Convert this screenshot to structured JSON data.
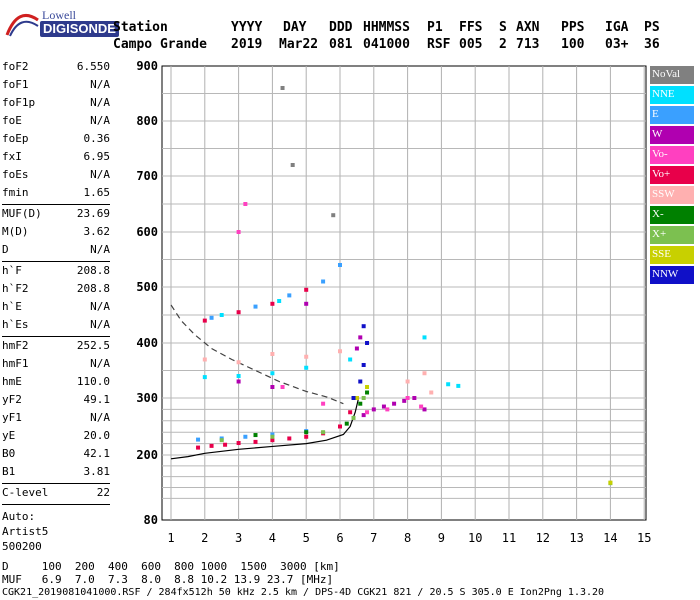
{
  "logo": {
    "line1": "Lowell",
    "line2": "DIGISONDE"
  },
  "header": {
    "labels": [
      "Station",
      "YYYY",
      "DAY",
      "DDD",
      "HHMMSS",
      "P1",
      "FFS",
      "S",
      "AXN",
      "PPS",
      "IGA",
      "PS"
    ],
    "values": [
      "Campo Grande",
      "2019",
      "Mar22",
      "081",
      "041000",
      "RSF",
      "005",
      "2",
      "713",
      "100",
      "03+",
      "36"
    ]
  },
  "params_group1": [
    {
      "name": "foF2",
      "value": "6.550"
    },
    {
      "name": "foF1",
      "value": "N/A"
    },
    {
      "name": "foF1p",
      "value": "N/A"
    },
    {
      "name": "foE",
      "value": "N/A"
    },
    {
      "name": "foEp",
      "value": "0.36"
    },
    {
      "name": "fxI",
      "value": "6.95"
    },
    {
      "name": "foEs",
      "value": "N/A"
    },
    {
      "name": "fmin",
      "value": "1.65"
    }
  ],
  "params_group2": [
    {
      "name": "MUF(D)",
      "value": "23.69"
    },
    {
      "name": "M(D)",
      "value": "3.62"
    },
    {
      "name": "D",
      "value": "N/A"
    }
  ],
  "params_group3": [
    {
      "name": "h`F",
      "value": "208.8"
    },
    {
      "name": "h`F2",
      "value": "208.8"
    },
    {
      "name": "h`E",
      "value": "N/A"
    },
    {
      "name": "h`Es",
      "value": "N/A"
    }
  ],
  "params_group4": [
    {
      "name": "hmF2",
      "value": "252.5"
    },
    {
      "name": "hmF1",
      "value": "N/A"
    },
    {
      "name": "hmE",
      "value": "110.0"
    },
    {
      "name": "yF2",
      "value": "49.1"
    },
    {
      "name": "yF1",
      "value": "N/A"
    },
    {
      "name": "yE",
      "value": "20.0"
    },
    {
      "name": "B0",
      "value": "42.1"
    },
    {
      "name": "B1",
      "value": "3.81"
    }
  ],
  "params_group5": [
    {
      "name": "C-level",
      "value": "22"
    }
  ],
  "autoscale": [
    "Auto:",
    "Artist5",
    "500200"
  ],
  "legend": [
    {
      "label": "NoVal",
      "color": "#808080"
    },
    {
      "label": "NNE",
      "color": "#00e0ff"
    },
    {
      "label": "E",
      "color": "#3aa0ff"
    },
    {
      "label": "W",
      "color": "#b000b0"
    },
    {
      "label": "Vo-",
      "color": "#ff40c0"
    },
    {
      "label": "Vo+",
      "color": "#e8004a"
    },
    {
      "label": "SSW",
      "color": "#ffb0b0"
    },
    {
      "label": "X-",
      "color": "#008000"
    },
    {
      "label": "X+",
      "color": "#7cc050"
    },
    {
      "label": "SSE",
      "color": "#c8d000"
    },
    {
      "label": "NNW",
      "color": "#1010c8"
    }
  ],
  "footer": {
    "d_line": "D     100  200  400  600  800 1000  1500  3000 [km]",
    "muf_line": "MUF   6.9  7.0  7.3  8.0  8.8 10.2 13.9 23.7 [MHz]",
    "info_line": "CGK21_2019081041000.RSF / 284fx512h 50 kHz 2.5 km / DPS-4D CGK21 821 / 20.5 S 305.0 E Ion2Png 1.3.20"
  },
  "chart_data": {
    "type": "scatter",
    "xlim": [
      1,
      15
    ],
    "ylim": [
      80,
      900
    ],
    "x_ticks": [
      1,
      2,
      3,
      4,
      5,
      6,
      7,
      8,
      9,
      10,
      11,
      12,
      13,
      14,
      15
    ],
    "y_ticks": [
      80,
      200,
      300,
      400,
      500,
      600,
      700,
      800,
      900
    ],
    "grid": true,
    "legend_position": "right",
    "series": [
      {
        "name": "Vo+",
        "color": "#e8004a",
        "points": [
          [
            1.8,
            213
          ],
          [
            2.2,
            216
          ],
          [
            2.6,
            218
          ],
          [
            3.0,
            221
          ],
          [
            3.5,
            223
          ],
          [
            4.0,
            226
          ],
          [
            4.5,
            229
          ],
          [
            5.0,
            232
          ],
          [
            5.5,
            238
          ],
          [
            6.0,
            250
          ],
          [
            6.3,
            275
          ],
          [
            6.5,
            300
          ],
          [
            2.0,
            440
          ],
          [
            3.0,
            455
          ],
          [
            4.0,
            470
          ],
          [
            5.0,
            495
          ]
        ]
      },
      {
        "name": "E",
        "color": "#3aa0ff",
        "points": [
          [
            1.8,
            227
          ],
          [
            2.5,
            229
          ],
          [
            3.2,
            232
          ],
          [
            4.0,
            236
          ],
          [
            5.0,
            242
          ],
          [
            2.2,
            445
          ],
          [
            3.5,
            465
          ],
          [
            4.5,
            485
          ],
          [
            5.5,
            510
          ],
          [
            6.0,
            540
          ]
        ]
      },
      {
        "name": "NNE",
        "color": "#00e0ff",
        "points": [
          [
            2.0,
            338
          ],
          [
            3.0,
            340
          ],
          [
            4.0,
            345
          ],
          [
            5.0,
            355
          ],
          [
            6.3,
            370
          ],
          [
            8.5,
            410
          ],
          [
            9.2,
            325
          ],
          [
            9.5,
            322
          ],
          [
            2.5,
            450
          ],
          [
            4.2,
            475
          ]
        ]
      },
      {
        "name": "W",
        "color": "#b000b0",
        "points": [
          [
            6.7,
            270
          ],
          [
            7.0,
            280
          ],
          [
            7.3,
            285
          ],
          [
            7.6,
            290
          ],
          [
            7.9,
            295
          ],
          [
            8.2,
            300
          ],
          [
            8.5,
            280
          ],
          [
            6.5,
            390
          ],
          [
            6.6,
            410
          ],
          [
            3.0,
            330
          ],
          [
            4.0,
            320
          ],
          [
            5.0,
            470
          ]
        ]
      },
      {
        "name": "Vo-",
        "color": "#ff40c0",
        "points": [
          [
            6.8,
            275
          ],
          [
            7.4,
            280
          ],
          [
            8.0,
            300
          ],
          [
            8.4,
            285
          ],
          [
            3.0,
            600
          ],
          [
            3.2,
            650
          ],
          [
            5.5,
            290
          ],
          [
            4.3,
            320
          ]
        ]
      },
      {
        "name": "SSW",
        "color": "#ffb0b0",
        "points": [
          [
            2.0,
            370
          ],
          [
            3.0,
            365
          ],
          [
            4.0,
            380
          ],
          [
            5.0,
            375
          ],
          [
            6.0,
            385
          ],
          [
            8.0,
            330
          ],
          [
            8.5,
            345
          ],
          [
            8.7,
            310
          ]
        ]
      },
      {
        "name": "X-",
        "color": "#008000",
        "points": [
          [
            3.5,
            235
          ],
          [
            5.0,
            240
          ],
          [
            6.2,
            255
          ],
          [
            6.6,
            290
          ],
          [
            6.8,
            310
          ]
        ]
      },
      {
        "name": "X+",
        "color": "#7cc050",
        "points": [
          [
            2.5,
            226
          ],
          [
            4.0,
            232
          ],
          [
            5.5,
            240
          ],
          [
            6.4,
            265
          ],
          [
            6.7,
            300
          ],
          [
            14.0,
            148
          ]
        ]
      },
      {
        "name": "SSE",
        "color": "#c8d000",
        "points": [
          [
            6.5,
            300
          ],
          [
            6.8,
            320
          ],
          [
            14.0,
            149
          ]
        ]
      },
      {
        "name": "NNW",
        "color": "#1010c8",
        "points": [
          [
            6.6,
            330
          ],
          [
            6.7,
            360
          ],
          [
            6.8,
            400
          ],
          [
            6.7,
            430
          ],
          [
            6.4,
            300
          ]
        ]
      },
      {
        "name": "NoVal",
        "color": "#808080",
        "points": [
          [
            4.3,
            860
          ],
          [
            4.6,
            720
          ],
          [
            5.8,
            630
          ]
        ]
      }
    ],
    "lines": [
      {
        "name": "profile",
        "style": "solid",
        "x": [
          1.0,
          1.5,
          2.0,
          3.0,
          4.0,
          5.0,
          5.6,
          6.1,
          6.3,
          6.45,
          6.55
        ],
        "y": [
          193,
          197,
          203,
          210,
          215,
          220,
          226,
          236,
          250,
          275,
          300
        ]
      },
      {
        "name": "virtual",
        "style": "dashed",
        "x": [
          1.0,
          1.3,
          1.7,
          2.2,
          2.8,
          3.5,
          4.2,
          5.0,
          5.6,
          6.1
        ],
        "y": [
          468,
          440,
          415,
          390,
          370,
          350,
          330,
          312,
          302,
          290
        ]
      }
    ]
  }
}
